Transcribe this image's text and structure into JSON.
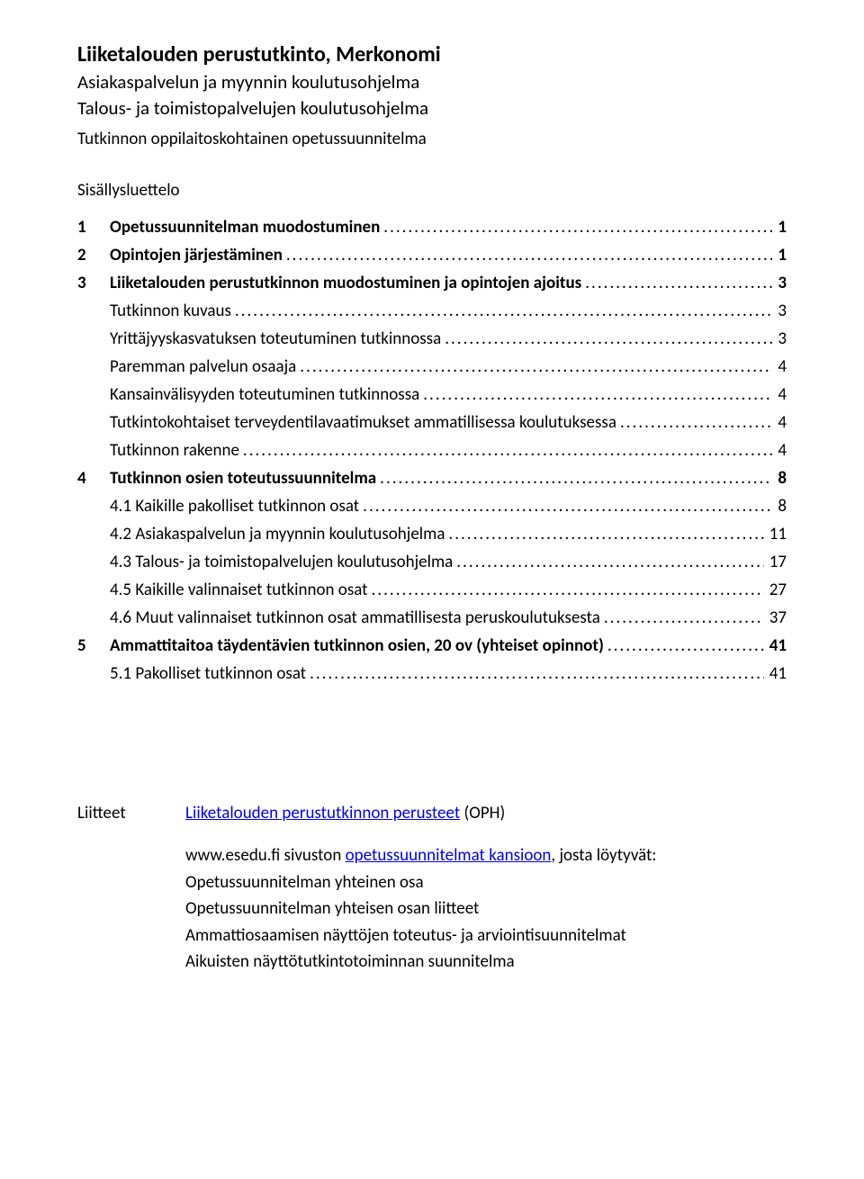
{
  "title": "Liiketalouden perustutkinto, Merkonomi",
  "subtitle1": "Asiakaspalvelun ja myynnin koulutusohjelma",
  "subtitle2": "Talous- ja toimistopalvelujen koulutusohjelma",
  "subheading": "Tutkinnon oppilaitoskohtainen opetussuunnitelma",
  "toc_heading": "Sisällysluettelo",
  "toc": [
    {
      "num": "1",
      "label": "Opetussuunnitelman muodostuminen",
      "page": "1",
      "level": 0,
      "bold": true
    },
    {
      "num": "2",
      "label": "Opintojen järjestäminen",
      "page": "1",
      "level": 0,
      "bold": true
    },
    {
      "num": "3",
      "label": "Liiketalouden perustutkinnon muodostuminen ja opintojen ajoitus",
      "page": "3",
      "level": 0,
      "bold": true
    },
    {
      "num": "",
      "label": "Tutkinnon kuvaus",
      "page": "3",
      "level": 1,
      "bold": false
    },
    {
      "num": "",
      "label": "Yrittäjyyskasvatuksen toteutuminen tutkinnossa",
      "page": "3",
      "level": 1,
      "bold": false
    },
    {
      "num": "",
      "label": "Paremman palvelun osaaja",
      "page": "4",
      "level": 1,
      "bold": false
    },
    {
      "num": "",
      "label": "Kansainvälisyyden toteutuminen tutkinnossa",
      "page": "4",
      "level": 1,
      "bold": false
    },
    {
      "num": "",
      "label": "Tutkintokohtaiset terveydentilavaatimukset ammatillisessa koulutuksessa",
      "page": "4",
      "level": 1,
      "bold": false
    },
    {
      "num": "",
      "label": "Tutkinnon rakenne",
      "page": "4",
      "level": 1,
      "bold": false
    },
    {
      "num": "4",
      "label": "Tutkinnon osien toteutussuunnitelma",
      "page": "8",
      "level": 0,
      "bold": true
    },
    {
      "num": "",
      "label": "4.1 Kaikille pakolliset tutkinnon osat",
      "page": "8",
      "level": 2,
      "bold": false
    },
    {
      "num": "",
      "label": "4.2 Asiakaspalvelun ja myynnin koulutusohjelma",
      "page": "11",
      "level": 2,
      "bold": false
    },
    {
      "num": "",
      "label": "4.3 Talous- ja toimistopalvelujen koulutusohjelma",
      "page": "17",
      "level": 2,
      "bold": false
    },
    {
      "num": "",
      "label": "4.5 Kaikille valinnaiset tutkinnon osat",
      "page": "27",
      "level": 2,
      "bold": false
    },
    {
      "num": "",
      "label": "4.6 Muut valinnaiset tutkinnon osat ammatillisesta peruskoulutuksesta",
      "page": "37",
      "level": 2,
      "bold": false
    },
    {
      "num": "5",
      "label": "Ammattitaitoa täydentävien tutkinnon osien, 20 ov (yhteiset opinnot)",
      "page": "41",
      "level": 0,
      "bold": true
    },
    {
      "num": "",
      "label": "5.1 Pakolliset tutkinnon osat",
      "page": "41",
      "level": 2,
      "bold": false
    }
  ],
  "attachments": {
    "label": "Liitteet",
    "line1_link": "Liiketalouden perustutkinnon perusteet",
    "line1_suffix": " (OPH)",
    "line2_prefix": "www.esedu.fi sivuston ",
    "line2_link": "opetussuunnitelmat kansioon",
    "line2_suffix": ", josta löytyvät:",
    "line3": "Opetussuunnitelman yhteinen osa",
    "line4": "Opetussuunnitelman yhteisen osan liitteet",
    "line5": "Ammattiosaamisen näyttöjen toteutus- ja arviointisuunnitelmat",
    "line6": "Aikuisten näyttötutkintotoiminnan suunnitelma"
  }
}
